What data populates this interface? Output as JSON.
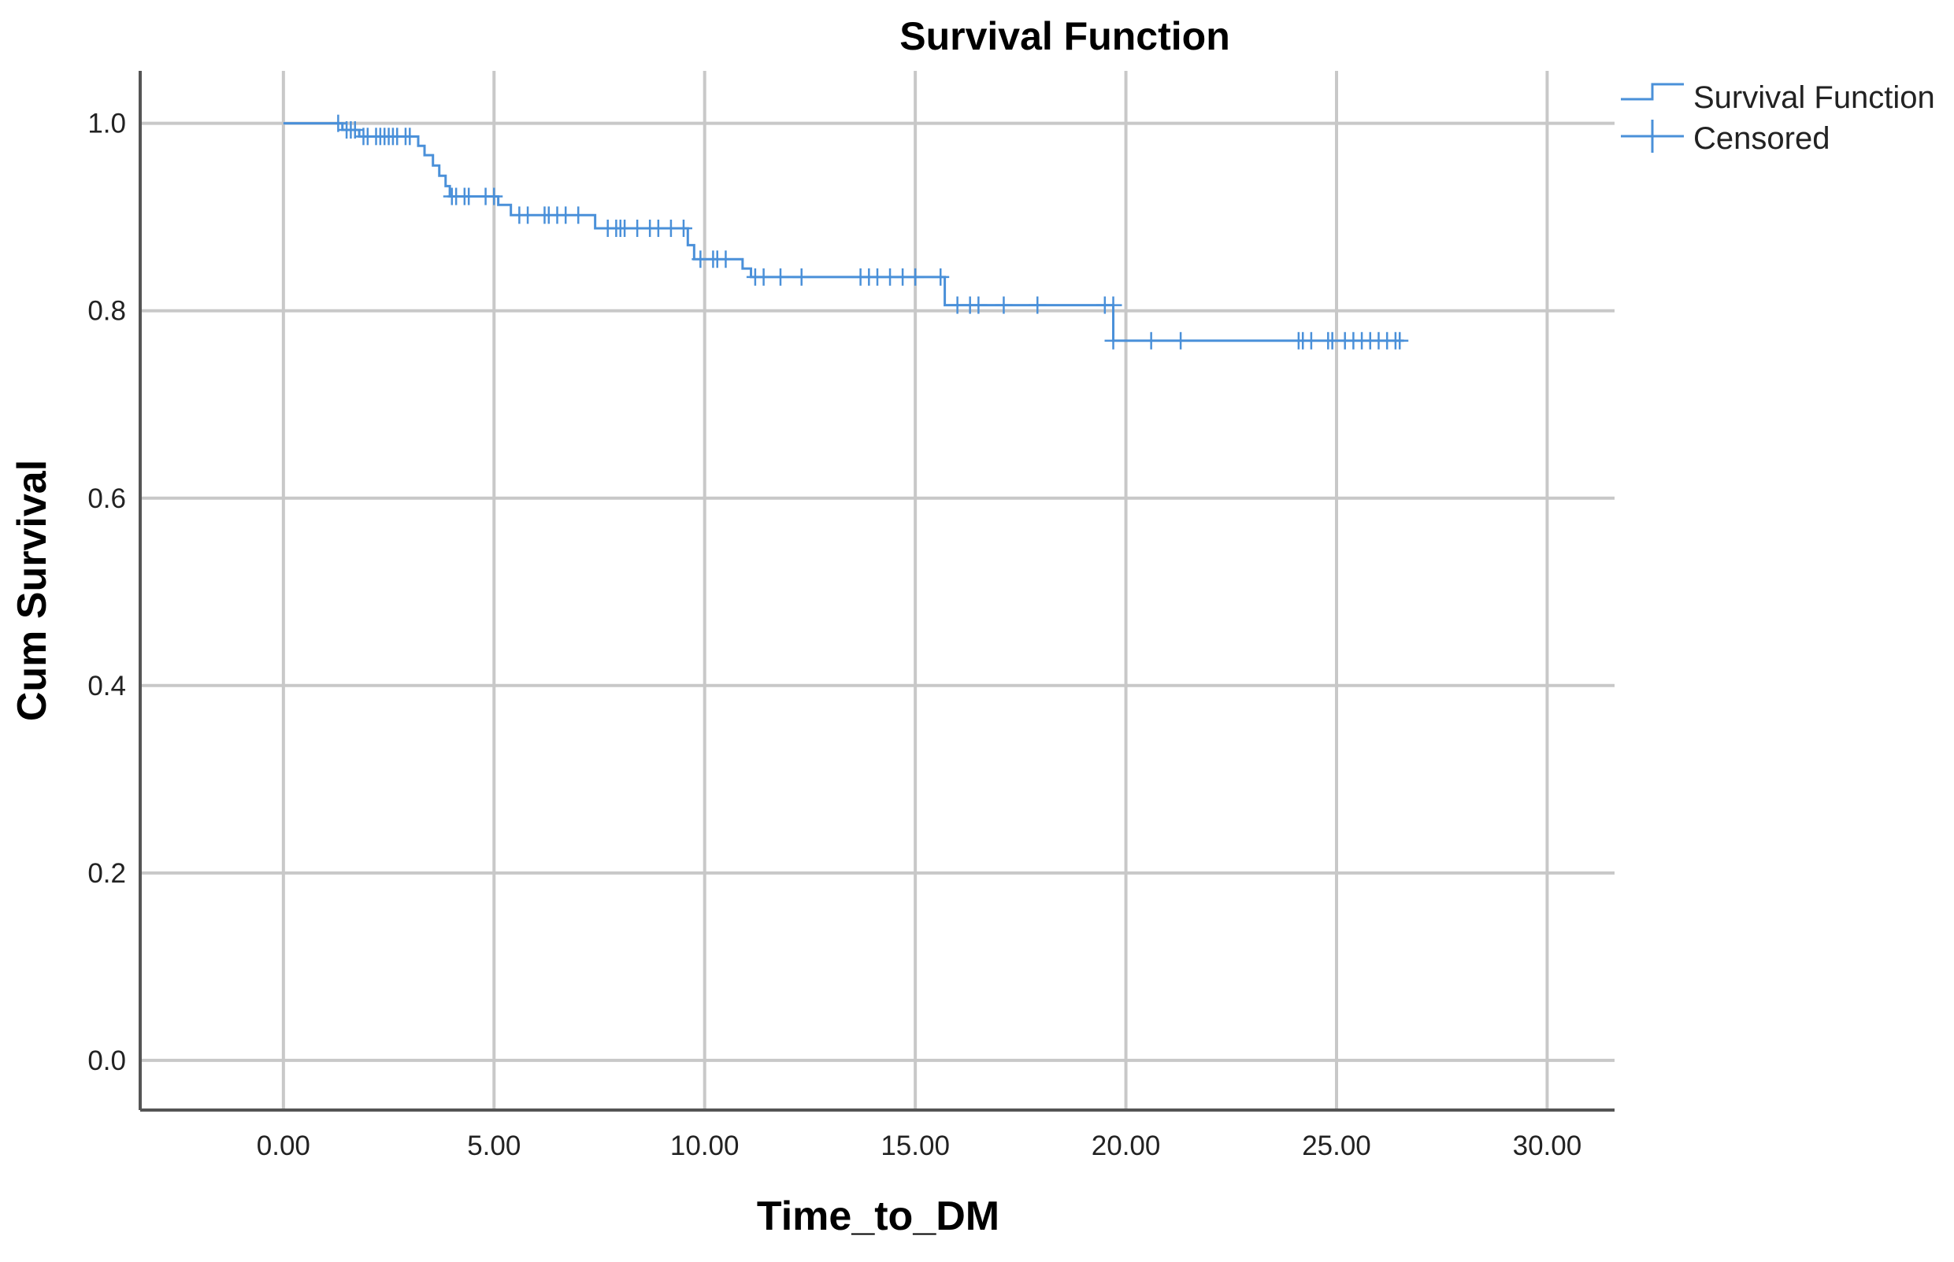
{
  "chart_data": {
    "type": "line",
    "title": "Survival Function",
    "xlabel": "Time_to_DM",
    "ylabel": "Cum Survival",
    "xlim": [
      -3.4,
      31.6
    ],
    "ylim": [
      -0.053,
      1.056
    ],
    "x_ticks": [
      0,
      5,
      10,
      15,
      20,
      25,
      30
    ],
    "x_tick_labels": [
      "0.00",
      "5.00",
      "10.00",
      "15.00",
      "20.00",
      "25.00",
      "30.00"
    ],
    "y_ticks": [
      0.0,
      0.2,
      0.4,
      0.6,
      0.8,
      1.0
    ],
    "y_tick_labels": [
      "0.0",
      "0.2",
      "0.4",
      "0.6",
      "0.8",
      "1.0"
    ],
    "grid": true,
    "legend_position": "top-right",
    "legend": [
      "Survival Function",
      "Censored"
    ],
    "colors": {
      "series": "#4a90d9",
      "grid": "#c8c8c8",
      "axis": "#555555"
    },
    "series": [
      {
        "name": "Survival Function",
        "kind": "step",
        "steps": [
          {
            "x": 0,
            "y": 1.0
          },
          {
            "x": 1.4,
            "y": 0.993
          },
          {
            "x": 1.8,
            "y": 0.986
          },
          {
            "x": 3.2,
            "y": 0.976
          },
          {
            "x": 3.35,
            "y": 0.966
          },
          {
            "x": 3.55,
            "y": 0.955
          },
          {
            "x": 3.7,
            "y": 0.944
          },
          {
            "x": 3.85,
            "y": 0.933
          },
          {
            "x": 3.95,
            "y": 0.922
          },
          {
            "x": 5.1,
            "y": 0.913
          },
          {
            "x": 5.4,
            "y": 0.902
          },
          {
            "x": 7.4,
            "y": 0.888
          },
          {
            "x": 9.6,
            "y": 0.87
          },
          {
            "x": 9.75,
            "y": 0.855
          },
          {
            "x": 10.9,
            "y": 0.845
          },
          {
            "x": 11.1,
            "y": 0.836
          },
          {
            "x": 15.7,
            "y": 0.806
          },
          {
            "x": 19.7,
            "y": 0.768
          },
          {
            "x": 26.6,
            "y": 0.768
          }
        ]
      },
      {
        "name": "Censored",
        "kind": "markers",
        "points": [
          {
            "x": 1.3,
            "y": 1.0
          },
          {
            "x": 1.5,
            "y": 0.993
          },
          {
            "x": 1.6,
            "y": 0.993
          },
          {
            "x": 1.7,
            "y": 0.993
          },
          {
            "x": 1.9,
            "y": 0.986
          },
          {
            "x": 2.0,
            "y": 0.986
          },
          {
            "x": 2.2,
            "y": 0.986
          },
          {
            "x": 2.3,
            "y": 0.986
          },
          {
            "x": 2.4,
            "y": 0.986
          },
          {
            "x": 2.5,
            "y": 0.986
          },
          {
            "x": 2.6,
            "y": 0.986
          },
          {
            "x": 2.7,
            "y": 0.986
          },
          {
            "x": 2.9,
            "y": 0.986
          },
          {
            "x": 3.0,
            "y": 0.986
          },
          {
            "x": 4.0,
            "y": 0.922
          },
          {
            "x": 4.1,
            "y": 0.922
          },
          {
            "x": 4.3,
            "y": 0.922
          },
          {
            "x": 4.4,
            "y": 0.922
          },
          {
            "x": 4.8,
            "y": 0.922
          },
          {
            "x": 5.0,
            "y": 0.922
          },
          {
            "x": 5.6,
            "y": 0.902
          },
          {
            "x": 5.8,
            "y": 0.902
          },
          {
            "x": 6.2,
            "y": 0.902
          },
          {
            "x": 6.3,
            "y": 0.902
          },
          {
            "x": 6.5,
            "y": 0.902
          },
          {
            "x": 6.7,
            "y": 0.902
          },
          {
            "x": 7.0,
            "y": 0.902
          },
          {
            "x": 7.7,
            "y": 0.888
          },
          {
            "x": 7.9,
            "y": 0.888
          },
          {
            "x": 8.0,
            "y": 0.888
          },
          {
            "x": 8.1,
            "y": 0.888
          },
          {
            "x": 8.4,
            "y": 0.888
          },
          {
            "x": 8.7,
            "y": 0.888
          },
          {
            "x": 8.9,
            "y": 0.888
          },
          {
            "x": 9.2,
            "y": 0.888
          },
          {
            "x": 9.5,
            "y": 0.888
          },
          {
            "x": 9.9,
            "y": 0.855
          },
          {
            "x": 10.2,
            "y": 0.855
          },
          {
            "x": 10.3,
            "y": 0.855
          },
          {
            "x": 10.5,
            "y": 0.855
          },
          {
            "x": 11.2,
            "y": 0.836
          },
          {
            "x": 11.4,
            "y": 0.836
          },
          {
            "x": 11.8,
            "y": 0.836
          },
          {
            "x": 12.3,
            "y": 0.836
          },
          {
            "x": 13.7,
            "y": 0.836
          },
          {
            "x": 13.9,
            "y": 0.836
          },
          {
            "x": 14.1,
            "y": 0.836
          },
          {
            "x": 14.4,
            "y": 0.836
          },
          {
            "x": 14.7,
            "y": 0.836
          },
          {
            "x": 15.0,
            "y": 0.836
          },
          {
            "x": 15.6,
            "y": 0.836
          },
          {
            "x": 16.0,
            "y": 0.806
          },
          {
            "x": 16.3,
            "y": 0.806
          },
          {
            "x": 16.5,
            "y": 0.806
          },
          {
            "x": 17.1,
            "y": 0.806
          },
          {
            "x": 17.9,
            "y": 0.806
          },
          {
            "x": 19.5,
            "y": 0.806
          },
          {
            "x": 19.7,
            "y": 0.806
          },
          {
            "x": 19.7,
            "y": 0.768
          },
          {
            "x": 20.6,
            "y": 0.768
          },
          {
            "x": 21.3,
            "y": 0.768
          },
          {
            "x": 24.1,
            "y": 0.768
          },
          {
            "x": 24.2,
            "y": 0.768
          },
          {
            "x": 24.4,
            "y": 0.768
          },
          {
            "x": 24.8,
            "y": 0.768
          },
          {
            "x": 24.9,
            "y": 0.768
          },
          {
            "x": 25.2,
            "y": 0.768
          },
          {
            "x": 25.4,
            "y": 0.768
          },
          {
            "x": 25.6,
            "y": 0.768
          },
          {
            "x": 25.8,
            "y": 0.768
          },
          {
            "x": 26.0,
            "y": 0.768
          },
          {
            "x": 26.2,
            "y": 0.768
          },
          {
            "x": 26.4,
            "y": 0.768
          },
          {
            "x": 26.5,
            "y": 0.768
          }
        ]
      }
    ]
  }
}
